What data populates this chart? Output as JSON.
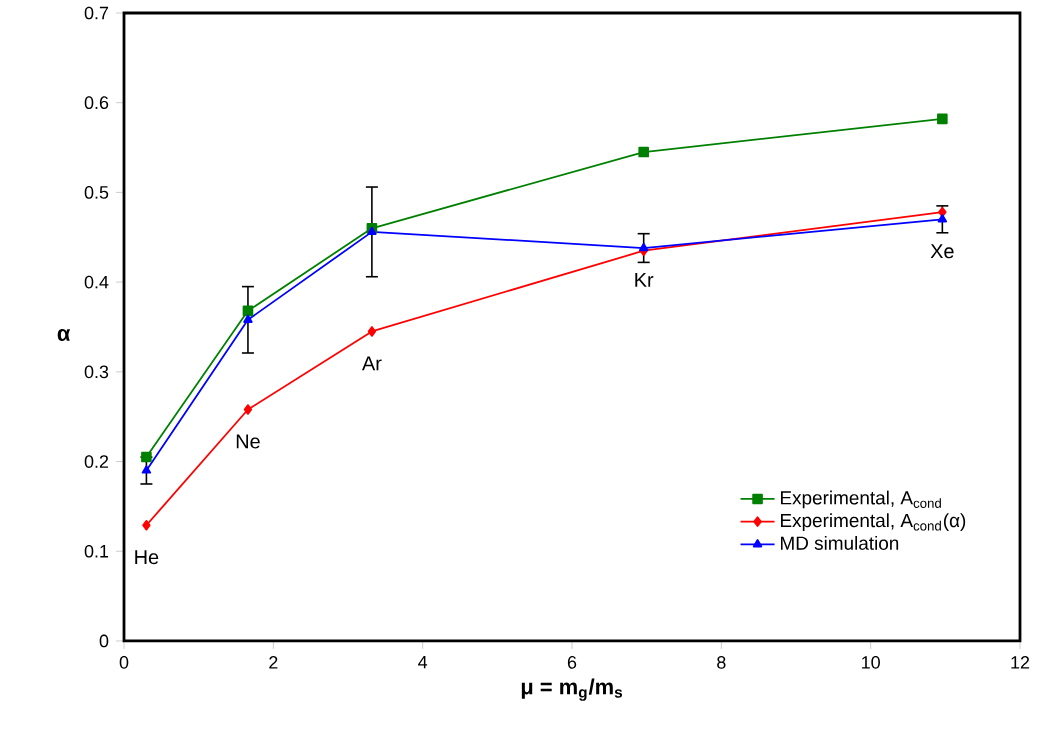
{
  "chart_data": {
    "type": "line",
    "xlabel": "μ = m$_{g}$/m$_{s}$",
    "ylabel": "α",
    "xlim": [
      0,
      12
    ],
    "xticks": [
      0,
      2,
      4,
      6,
      8,
      10,
      12
    ],
    "ylim": [
      0,
      0.7
    ],
    "yticks": [
      0,
      0.1,
      0.2,
      0.3,
      0.4,
      0.5,
      0.6,
      0.7
    ],
    "grid": false,
    "legend": "bottom right",
    "line_style": "solid",
    "series": [
      {
        "name": "Experimental, A$_{cond}$",
        "color": "#008000",
        "marker": "square",
        "x": [
          0.3,
          1.66,
          3.32,
          6.96,
          10.96
        ],
        "values": [
          0.205,
          0.368,
          0.46,
          0.545,
          0.582
        ]
      },
      {
        "name": "Experimental, A$_{cond}$(α)",
        "color": "#ff0000",
        "marker": "diamond",
        "x": [
          0.3,
          1.66,
          3.32,
          6.96,
          10.96
        ],
        "values": [
          0.129,
          0.258,
          0.345,
          0.435,
          0.478
        ]
      },
      {
        "name": "MD simulation",
        "color": "#0000ff",
        "marker": "triangle",
        "x": [
          0.3,
          1.66,
          3.32,
          6.96,
          10.96
        ],
        "values": [
          0.19,
          0.358,
          0.456,
          0.438,
          0.47
        ],
        "errors": [
          0.015,
          0.037,
          0.05,
          0.016,
          0.015
        ]
      }
    ],
    "annotations": [
      {
        "text": "He",
        "x": 0.3,
        "y": 0.129
      },
      {
        "text": "Ne",
        "x": 1.66,
        "y": 0.258
      },
      {
        "text": "Ar",
        "x": 3.32,
        "y": 0.345
      },
      {
        "text": "Kr",
        "x": 6.96,
        "y": 0.438
      },
      {
        "text": "Xe",
        "x": 10.96,
        "y": 0.47
      }
    ]
  }
}
